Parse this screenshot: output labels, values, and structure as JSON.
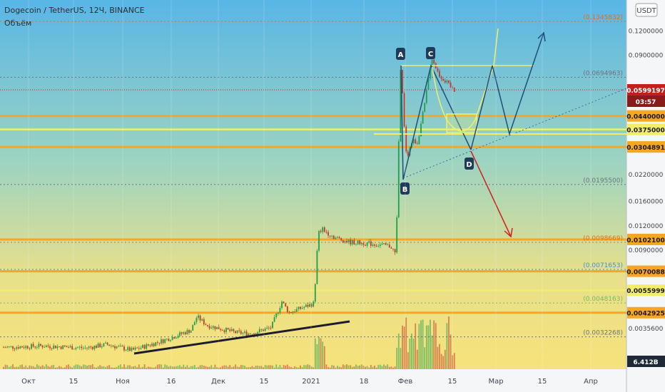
{
  "header": {
    "symbol_line": "Dogecoin / TetherUS, 12Ч, BINANCE",
    "volume_label": "Объём"
  },
  "currency_button": "USDT",
  "countdown": "03:57",
  "colors": {
    "bg_top": "#57b8e6",
    "bg_bottom": "#f7e27a",
    "orange": "#f5a623",
    "yellow": "#f2ee6a",
    "green_candle": "#1f9e4f",
    "red_candle": "#c0392b",
    "navy": "#1f4e79",
    "red_arrow": "#cc2222",
    "last_price": "#c41e1e"
  },
  "chart_data": {
    "type": "candlestick",
    "y_scale": "log",
    "ylim": [
      0.0025,
      0.18
    ],
    "x_tick_labels": [
      "Окт",
      "15",
      "Ноя",
      "16",
      "Дек",
      "15",
      "2021",
      "18",
      "Фев",
      "15",
      "Мар",
      "15",
      "Апр"
    ],
    "y_tick_labels": [
      0.12,
      0.09,
      0.022,
      0.016,
      0.012,
      0.009,
      0.00356
    ],
    "y_tick_display": [
      "0.1200000",
      "0.0900000",
      "0.0220000",
      "0.0160000",
      "0.0120000",
      "0.0090000",
      "0.0035600"
    ],
    "horizontal_levels": [
      {
        "value": 0.1345832,
        "label": "(0.1345832)",
        "style": "orange-dotted"
      },
      {
        "value": 0.0694963,
        "label": "(0.0694963)",
        "style": "gray-dotted"
      },
      {
        "value": 0.0599197,
        "label": "0.0599197",
        "style": "last-price"
      },
      {
        "value": 0.044,
        "label": "0.0440000",
        "style": "orange-solid"
      },
      {
        "value": 0.0375,
        "label": "0.0375000",
        "style": "yellow-solid"
      },
      {
        "value": 0.0304891,
        "label": "0.0304891",
        "style": "orange-solid"
      },
      {
        "value": 0.01955,
        "label": "(0.0195500)",
        "style": "gray-dotted"
      },
      {
        "value": 0.0098669,
        "label": "(0.0098669)",
        "style": "orange-dotted"
      },
      {
        "value": 0.01021,
        "label": "0.0102100",
        "style": "orange-solid"
      },
      {
        "value": 0.0071653,
        "label": "(0.0071653)",
        "style": "blue-dotted"
      },
      {
        "value": 0.0070088,
        "label": "0.0070088",
        "style": "orange-solid"
      },
      {
        "value": 0.0055999,
        "label": "0.0055999",
        "style": "yellow-solid"
      },
      {
        "value": 0.0048163,
        "label": "(0.0048163)",
        "style": "green-dotted"
      },
      {
        "value": 0.0042925,
        "label": "0.0042925",
        "style": "orange-solid"
      },
      {
        "value": 0.0032268,
        "label": "(0.0032268)",
        "style": "gray-dotted"
      }
    ],
    "volume_label": "6.412B",
    "pattern_points": [
      {
        "label": "A",
        "price": 0.09
      },
      {
        "label": "B",
        "price": 0.0215
      },
      {
        "label": "C",
        "price": 0.09
      },
      {
        "label": "D",
        "price": 0.0304891
      }
    ]
  }
}
